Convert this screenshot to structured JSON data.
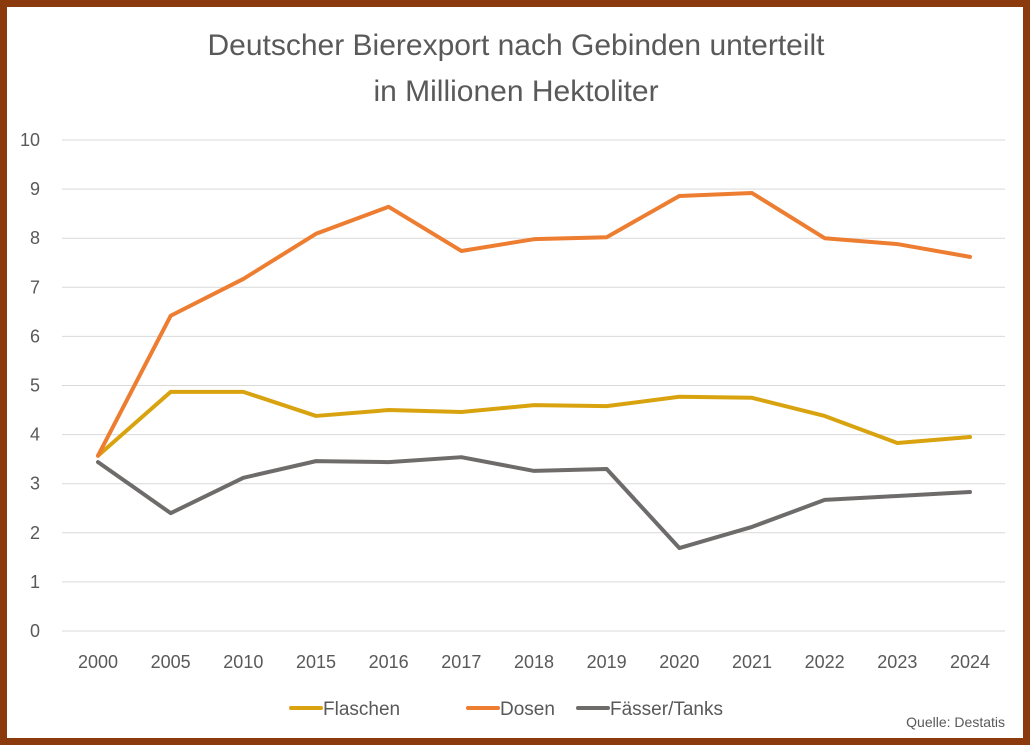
{
  "chart_data": {
    "type": "line",
    "title": [
      "Deutscher Bierexport nach Gebinden unterteilt",
      "in Millionen Hektoliter"
    ],
    "xlabel": "",
    "ylabel": "",
    "categories": [
      "2000",
      "2005",
      "2010",
      "2015",
      "2016",
      "2017",
      "2018",
      "2019",
      "2020",
      "2021",
      "2022",
      "2023",
      "2024"
    ],
    "ylim": [
      0,
      10
    ],
    "yticks": [
      "0",
      "1",
      "2",
      "3",
      "4",
      "5",
      "6",
      "7",
      "8",
      "9",
      "10"
    ],
    "grid": true,
    "legend_position": "bottom",
    "series": [
      {
        "name": "Flaschen",
        "color": "#D9A30F",
        "values": [
          3.57,
          4.87,
          4.87,
          4.38,
          4.5,
          4.46,
          4.6,
          4.58,
          4.77,
          4.75,
          4.38,
          3.83,
          3.95
        ]
      },
      {
        "name": "Dosen",
        "color": "#ED7D31",
        "values": [
          3.57,
          6.42,
          7.17,
          8.09,
          8.64,
          7.74,
          7.98,
          8.02,
          8.86,
          8.92,
          8.0,
          7.88,
          7.62
        ]
      },
      {
        "name": "Fässer/Tanks",
        "color": "#6E6B6B",
        "values": [
          3.44,
          2.4,
          3.12,
          3.46,
          3.44,
          3.54,
          3.26,
          3.3,
          1.69,
          2.12,
          2.67,
          2.75,
          2.83
        ]
      }
    ],
    "source": "Quelle: Destatis"
  },
  "colors": {
    "frame": "#8B3A0E",
    "grid": "#D9D9D9",
    "text": "#595959"
  }
}
